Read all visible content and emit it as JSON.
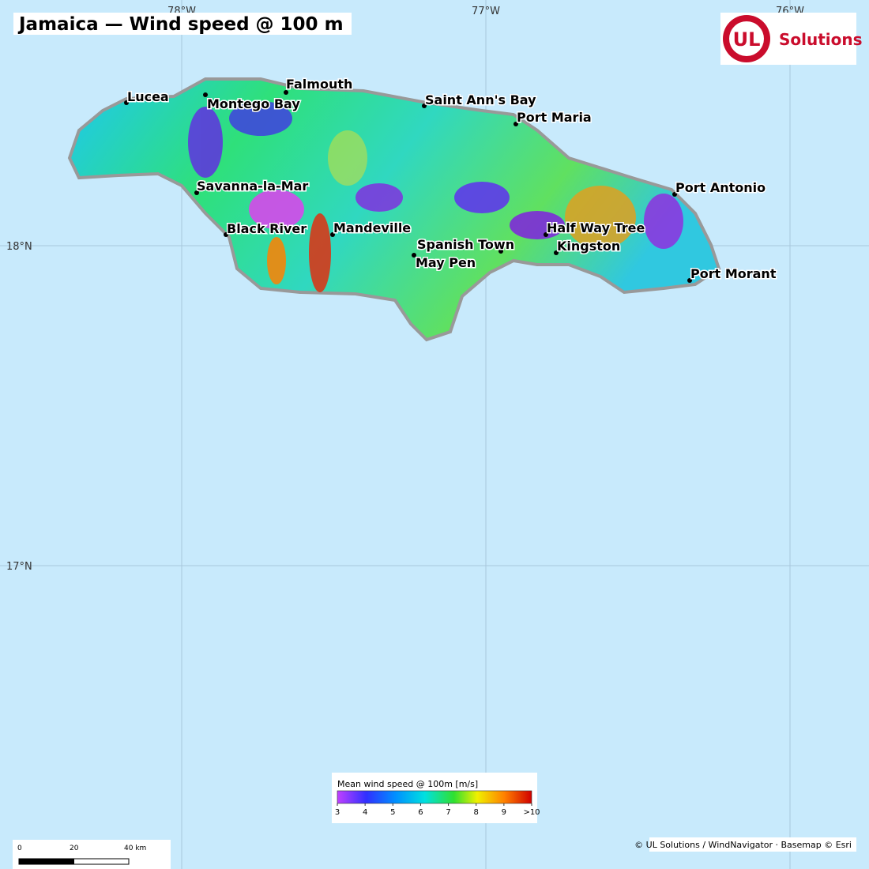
{
  "header": {
    "title": "Jamaica — Wind speed @ 100 m"
  },
  "logo": {
    "mark": "UL",
    "text": "Solutions"
  },
  "graticule": {
    "longitudes": [
      "78°W",
      "77°W",
      "76°W"
    ],
    "latitudes": [
      "18°N",
      "17°N"
    ]
  },
  "places": [
    "Lucea",
    "Montego Bay",
    "Falmouth",
    "Saint Ann's Bay",
    "Port Maria",
    "Savanna-la-Mar",
    "Port Antonio",
    "Black River",
    "Mandeville",
    "Spanish Town",
    "Half Way Tree",
    "Kingston",
    "May Pen",
    "Port Morant"
  ],
  "legend": {
    "title": "Mean wind speed @ 100m  [m/s]",
    "ticks": [
      3,
      4,
      5,
      6,
      7,
      8,
      9,
      {
        "value": 10,
        "label": ">10"
      }
    ]
  },
  "scale_bar": {
    "labels": [
      "0",
      "20",
      "40 km"
    ]
  },
  "attribution": "© UL Solutions / WindNavigator · Basemap © Esri"
}
